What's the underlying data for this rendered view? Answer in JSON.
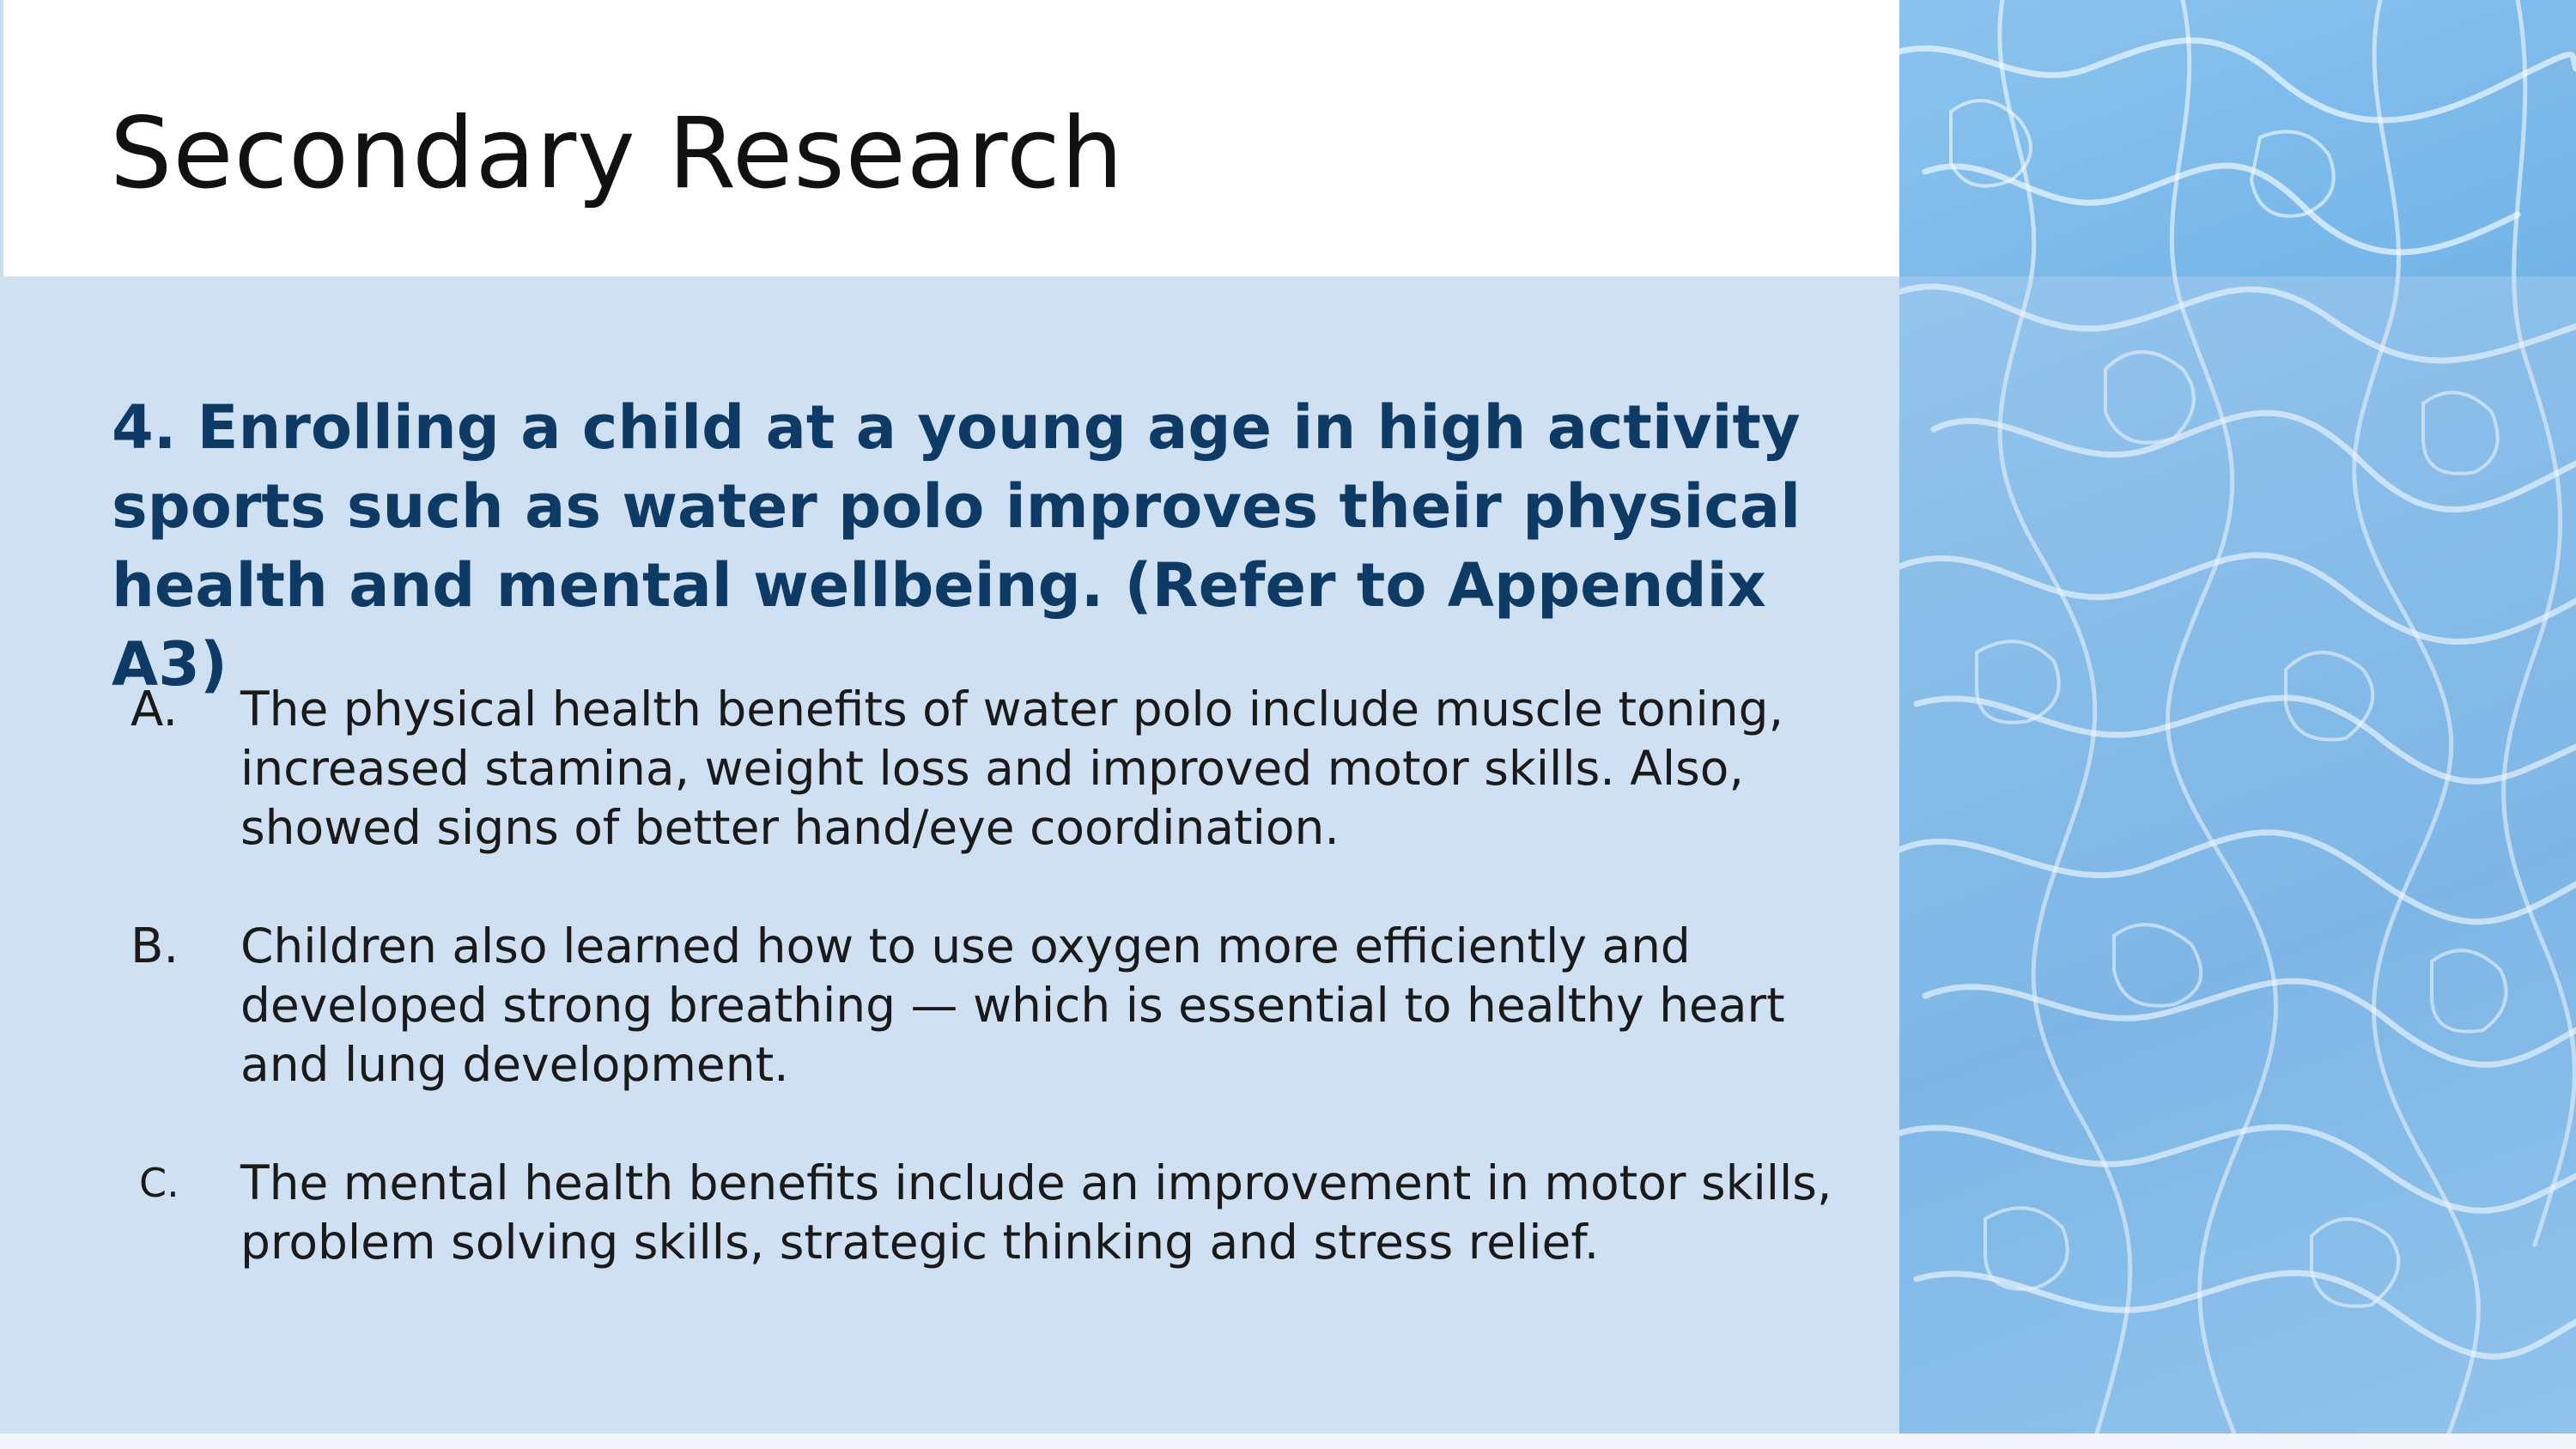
{
  "slide": {
    "title": "Secondary Research",
    "heading": "4. Enrolling a child at a young age in high activity sports such as water polo improves their physical health and mental wellbeing. (Refer to Appendix A3)",
    "items": [
      {
        "marker": "A.",
        "text": "The physical health benefits of water polo include muscle toning, increased stamina, weight loss and improved motor skills. Also, showed signs of better hand/eye coordination."
      },
      {
        "marker": "B.",
        "text": "Children also learned how to use oxygen more efficiently and developed strong breathing — which is essential to healthy heart and lung development."
      },
      {
        "marker": "C.",
        "text": "The mental health benefits include an improvement in motor skills, problem solving skills, strategic thinking and stress relief."
      }
    ]
  },
  "colors": {
    "content_background": "#cfe0f2",
    "heading_color": "#0e3b66",
    "body_text": "#1a1a1a",
    "water_blue": "#6fb2e7"
  }
}
